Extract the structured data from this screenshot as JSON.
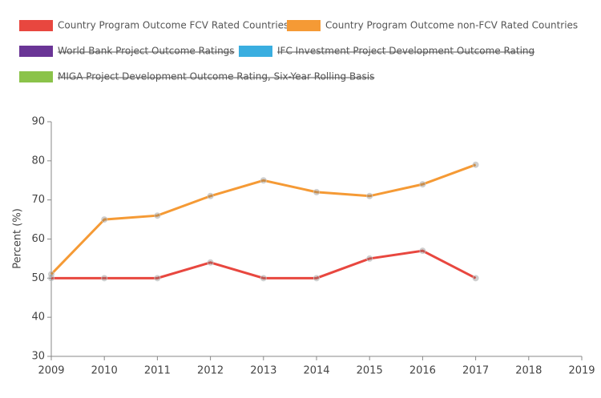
{
  "chart_data": {
    "type": "line",
    "y_label": "Percent (%)",
    "x": [
      2009,
      2010,
      2011,
      2012,
      2013,
      2014,
      2015,
      2016,
      2017
    ],
    "series": [
      {
        "name": "Country Program Outcome FCV Rated Countries",
        "color": "#e8473f",
        "values": [
          50,
          50,
          50,
          54,
          50,
          50,
          55,
          57,
          50
        ]
      },
      {
        "name": "Country Program Outcome non-FCV Rated Countries",
        "color": "#f59a35",
        "values": [
          51,
          65,
          66,
          71,
          75,
          72,
          71,
          74,
          79
        ]
      },
      {
        "name": "World Bank Project Outcome Ratings",
        "color": "#6a3596",
        "hidden": true
      },
      {
        "name": "IFC Investment Project Development Outcome Rating",
        "color": "#3aaee0",
        "hidden": true
      },
      {
        "name": "MIGA Project Development Outcome Rating, Six-Year Rolling Basis",
        "color": "#8bc34a",
        "hidden": true
      }
    ],
    "xlim": [
      2009,
      2019
    ],
    "xticks": [
      2009,
      2010,
      2011,
      2012,
      2013,
      2014,
      2015,
      2016,
      2017,
      2018,
      2019
    ],
    "ylim": [
      30,
      90
    ],
    "yticks": [
      30,
      40,
      50,
      60,
      70,
      80,
      90
    ]
  }
}
